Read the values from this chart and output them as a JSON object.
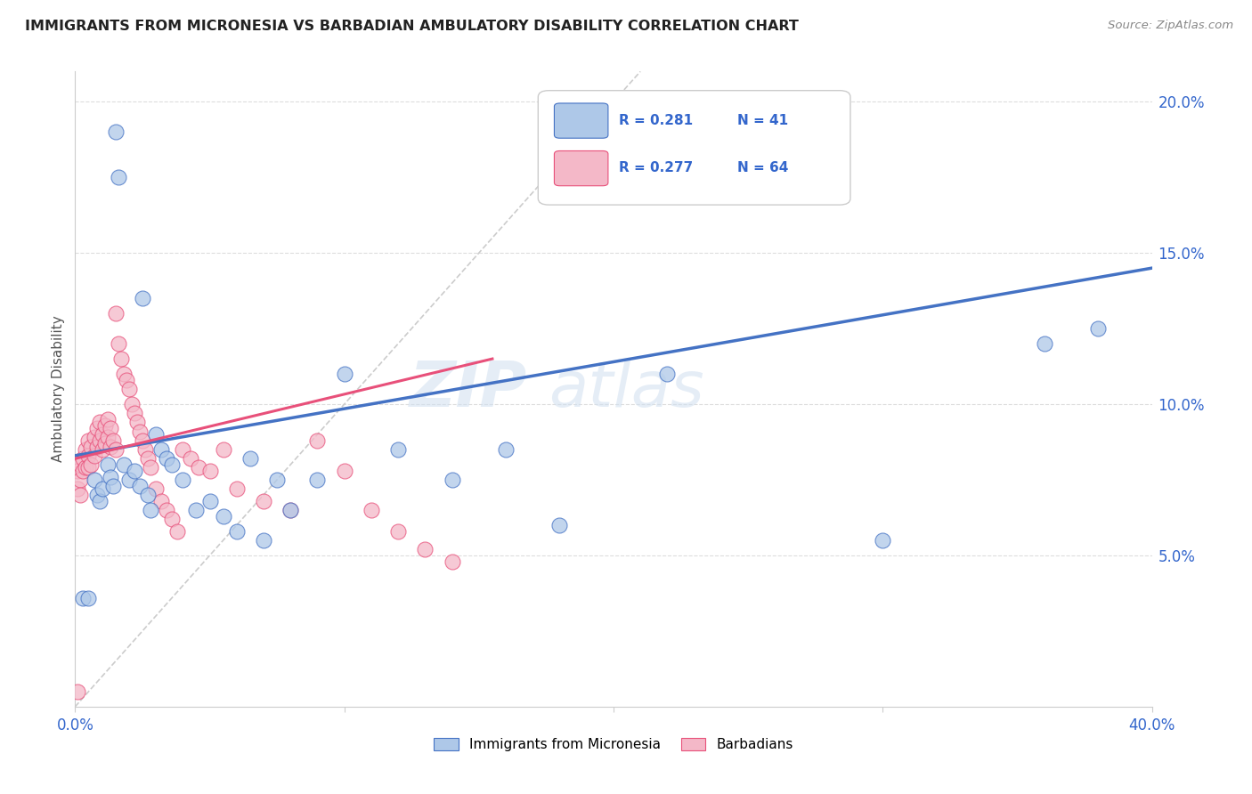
{
  "title": "IMMIGRANTS FROM MICRONESIA VS BARBADIAN AMBULATORY DISABILITY CORRELATION CHART",
  "source": "Source: ZipAtlas.com",
  "ylabel": "Ambulatory Disability",
  "xlim": [
    0.0,
    0.4
  ],
  "ylim": [
    0.0,
    0.21
  ],
  "yticks": [
    0.05,
    0.1,
    0.15,
    0.2
  ],
  "ytick_labels": [
    "5.0%",
    "10.0%",
    "15.0%",
    "20.0%"
  ],
  "xticks": [
    0.0,
    0.1,
    0.2,
    0.3,
    0.4
  ],
  "xtick_labels": [
    "0.0%",
    "",
    "",
    "",
    "40.0%"
  ],
  "legend_blue_r": "0.281",
  "legend_blue_n": "41",
  "legend_pink_r": "0.277",
  "legend_pink_n": "64",
  "legend_blue_label": "Immigrants from Micronesia",
  "legend_pink_label": "Barbadians",
  "blue_color": "#aec8e8",
  "pink_color": "#f4b8c8",
  "blue_line_color": "#4472c4",
  "pink_line_color": "#e8507a",
  "watermark": "ZIPatlas",
  "blue_line_x0": 0.0,
  "blue_line_y0": 0.083,
  "blue_line_x1": 0.4,
  "blue_line_y1": 0.145,
  "pink_line_x0": 0.0,
  "pink_line_y0": 0.082,
  "pink_line_x1": 0.155,
  "pink_line_y1": 0.115,
  "diag_line_x0": 0.0,
  "diag_line_y0": 0.0,
  "diag_line_x1": 0.21,
  "diag_line_y1": 0.21,
  "blue_x": [
    0.003,
    0.005,
    0.007,
    0.008,
    0.009,
    0.01,
    0.012,
    0.013,
    0.014,
    0.015,
    0.016,
    0.018,
    0.02,
    0.022,
    0.024,
    0.025,
    0.027,
    0.028,
    0.03,
    0.032,
    0.034,
    0.036,
    0.04,
    0.045,
    0.05,
    0.055,
    0.06,
    0.065,
    0.07,
    0.075,
    0.08,
    0.09,
    0.1,
    0.12,
    0.14,
    0.16,
    0.18,
    0.22,
    0.3,
    0.36,
    0.38
  ],
  "blue_y": [
    0.036,
    0.036,
    0.075,
    0.07,
    0.068,
    0.072,
    0.08,
    0.076,
    0.073,
    0.19,
    0.175,
    0.08,
    0.075,
    0.078,
    0.073,
    0.135,
    0.07,
    0.065,
    0.09,
    0.085,
    0.082,
    0.08,
    0.075,
    0.065,
    0.068,
    0.063,
    0.058,
    0.082,
    0.055,
    0.075,
    0.065,
    0.075,
    0.11,
    0.085,
    0.075,
    0.085,
    0.06,
    0.11,
    0.055,
    0.12,
    0.125
  ],
  "pink_x": [
    0.001,
    0.001,
    0.002,
    0.002,
    0.002,
    0.003,
    0.003,
    0.004,
    0.004,
    0.005,
    0.005,
    0.005,
    0.006,
    0.006,
    0.007,
    0.007,
    0.008,
    0.008,
    0.009,
    0.009,
    0.01,
    0.01,
    0.011,
    0.011,
    0.012,
    0.012,
    0.013,
    0.013,
    0.014,
    0.015,
    0.015,
    0.016,
    0.017,
    0.018,
    0.019,
    0.02,
    0.021,
    0.022,
    0.023,
    0.024,
    0.025,
    0.026,
    0.027,
    0.028,
    0.03,
    0.032,
    0.034,
    0.036,
    0.038,
    0.04,
    0.043,
    0.046,
    0.05,
    0.055,
    0.06,
    0.07,
    0.08,
    0.09,
    0.1,
    0.11,
    0.12,
    0.13,
    0.14,
    0.001
  ],
  "pink_y": [
    0.078,
    0.072,
    0.08,
    0.075,
    0.07,
    0.082,
    0.078,
    0.085,
    0.079,
    0.088,
    0.083,
    0.079,
    0.086,
    0.08,
    0.089,
    0.083,
    0.092,
    0.086,
    0.094,
    0.088,
    0.09,
    0.085,
    0.093,
    0.087,
    0.095,
    0.089,
    0.092,
    0.086,
    0.088,
    0.13,
    0.085,
    0.12,
    0.115,
    0.11,
    0.108,
    0.105,
    0.1,
    0.097,
    0.094,
    0.091,
    0.088,
    0.085,
    0.082,
    0.079,
    0.072,
    0.068,
    0.065,
    0.062,
    0.058,
    0.085,
    0.082,
    0.079,
    0.078,
    0.085,
    0.072,
    0.068,
    0.065,
    0.088,
    0.078,
    0.065,
    0.058,
    0.052,
    0.048,
    0.005
  ]
}
